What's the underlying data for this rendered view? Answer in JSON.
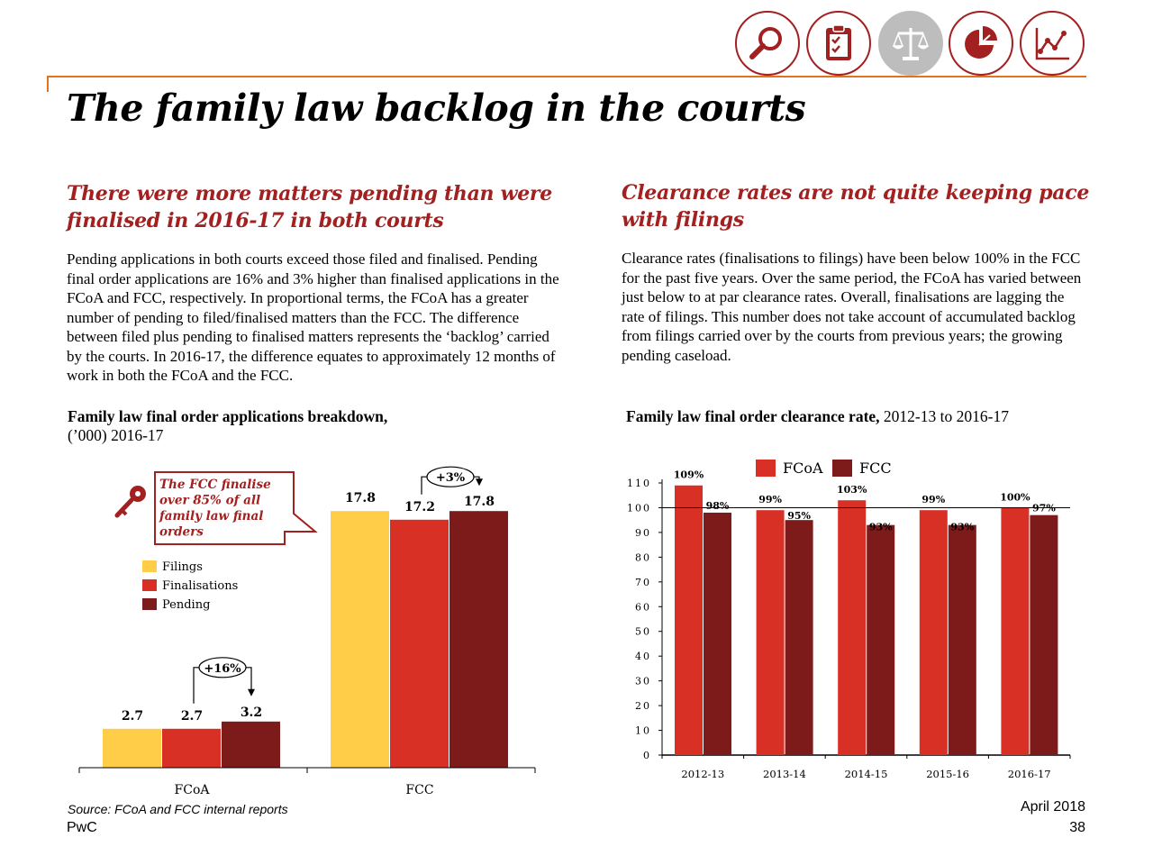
{
  "nav_icons": [
    {
      "name": "magnifier-icon",
      "active": false
    },
    {
      "name": "clipboard-checklist-icon",
      "active": false
    },
    {
      "name": "scales-of-justice-icon",
      "active": true
    },
    {
      "name": "pie-chart-icon",
      "active": false
    },
    {
      "name": "line-chart-icon",
      "active": false
    }
  ],
  "colors": {
    "brand_red": "#a32020",
    "orange_rule": "#e0731f",
    "filings": "#ffcd47",
    "finalisations": "#d93025",
    "pending": "#7d1a1a",
    "fcoa": "#d93025",
    "fcc": "#7d1a1a"
  },
  "title": "The family law backlog in the courts",
  "left": {
    "subhead": "There were more matters pending than were finalised in 2016-17 in both courts",
    "body": "Pending applications in both courts exceed those filed and finalised. Pending final order applications are 16% and 3% higher than finalised applications in the FCoA and FCC, respectively. In proportional terms, the FCoA has a greater number of pending to filed/finalised matters than the FCC. The difference between filed plus pending to finalised matters represents the ‘backlog’ carried by the courts. In 2016-17, the difference equates to approximately 12 months of work in both the FCoA and the FCC.",
    "chart_title_bold": "Family law final order applications breakdown,",
    "chart_title_rest": "(’000) 2016-17",
    "callout": "The FCC finalise over 85% of all family law final orders",
    "callout_icon": "key-icon"
  },
  "right": {
    "subhead": "Clearance rates are not quite keeping pace with filings",
    "body": "Clearance rates (finalisations to filings) have been below 100% in the FCC for the past five years. Over the same period, the FCoA has varied between just below to at par clearance rates. Overall, finalisations are lagging the rate of filings. This number does not take account of accumulated backlog from filings carried over by the courts from previous years; the growing pending caseload.",
    "chart_title_bold": "Family law final order clearance rate,",
    "chart_title_rest": " 2012-13 to 2016-17"
  },
  "chart_data": [
    {
      "type": "bar",
      "categories": [
        "FCoA",
        "FCC"
      ],
      "series": [
        {
          "name": "Filings",
          "values": [
            2.7,
            17.8
          ],
          "labels": [
            "2.7",
            "17.8"
          ]
        },
        {
          "name": "Finalisations",
          "values": [
            2.7,
            17.2
          ],
          "labels": [
            "2.7",
            "17.2"
          ]
        },
        {
          "name": "Pending",
          "values": [
            3.2,
            17.8
          ],
          "labels": [
            "3.2",
            "17.8"
          ]
        }
      ],
      "annotations": [
        "+16%",
        "+3%"
      ],
      "ylim": [
        0,
        19.5
      ],
      "legend": "left"
    },
    {
      "type": "bar",
      "categories": [
        "2012-13",
        "2013-14",
        "2014-15",
        "2015-16",
        "2016-17"
      ],
      "series": [
        {
          "name": "FCoA",
          "values": [
            109,
            99,
            103,
            99,
            100
          ],
          "labels": [
            "109%",
            "99%",
            "103%",
            "99%",
            "100%"
          ]
        },
        {
          "name": "FCC",
          "values": [
            98,
            95,
            93,
            93,
            97
          ],
          "labels": [
            "98%",
            "95%",
            "93%",
            "93%",
            "97%"
          ]
        }
      ],
      "yticks": [
        0,
        10,
        20,
        30,
        40,
        50,
        60,
        70,
        80,
        90,
        100,
        110
      ],
      "ylim": [
        0,
        110
      ],
      "reference_line": 100,
      "legend": "top"
    }
  ],
  "footer": {
    "source": "Source: FCoA and FCC internal reports",
    "brand": "PwC",
    "date": "April 2018",
    "page": "38"
  }
}
